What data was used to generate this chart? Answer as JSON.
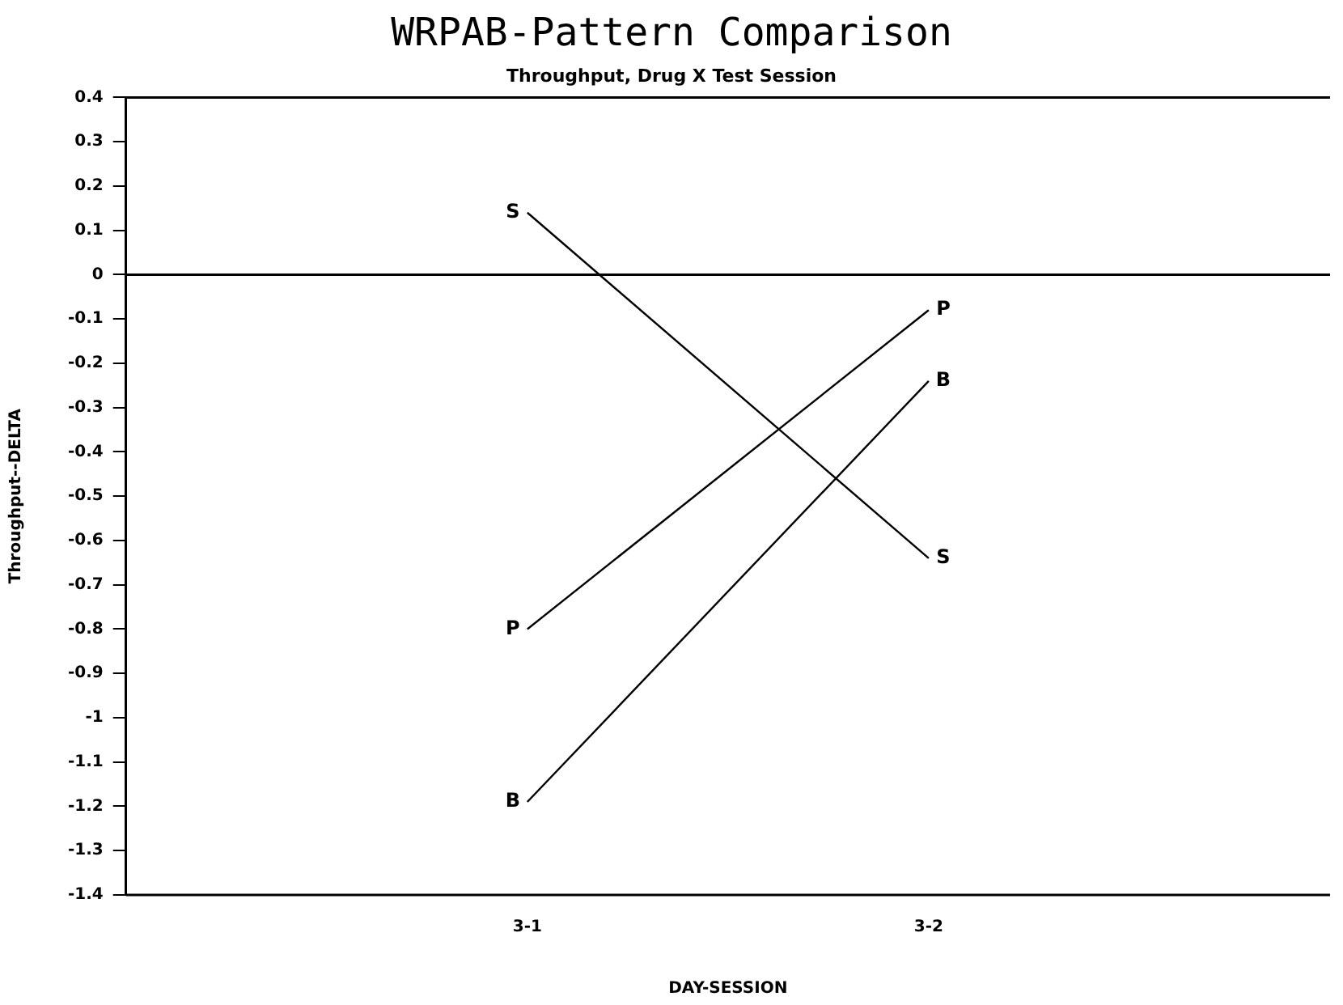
{
  "chart_data": {
    "type": "line",
    "title": "WRPAB-Pattern Comparison",
    "subtitle": "Throughput, Drug X Test Session",
    "xlabel": "DAY-SESSION",
    "ylabel": "Throughput--DELTA",
    "categories": [
      null,
      "3-1",
      "3-2",
      null
    ],
    "series": [
      {
        "name": "S",
        "color": "#000000",
        "values": [
          null,
          0.14,
          -0.64,
          null
        ]
      },
      {
        "name": "P",
        "color": "#000000",
        "values": [
          null,
          -0.8,
          -0.08,
          null
        ]
      },
      {
        "name": "B",
        "color": "#000000",
        "values": [
          null,
          -1.19,
          -0.24,
          null
        ]
      }
    ],
    "ylim": [
      -1.4,
      0.4
    ],
    "yticks": [
      0.4,
      0.3,
      0.2,
      0.1,
      0,
      -0.1,
      -0.2,
      -0.3,
      -0.4,
      -0.5,
      -0.6,
      -0.7,
      -0.8,
      -0.9,
      -1,
      -1.1,
      -1.2,
      -1.3,
      -1.4
    ],
    "ref_lines": [
      {
        "axis": "y",
        "value": 0,
        "color": "#000000"
      }
    ],
    "grid": false,
    "legend": false,
    "marker": "none",
    "line_style": "solid"
  }
}
